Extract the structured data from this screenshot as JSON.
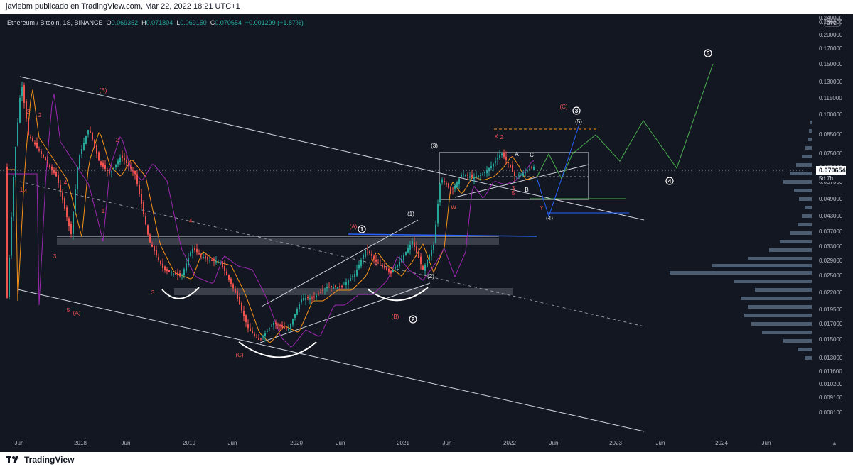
{
  "header": {
    "publisher_text": "javiebm publicado en TradingView.com, Mar 22, 2022 18:21 UTC+1"
  },
  "footer": {
    "brand": "TradingView",
    "logo_icon": "tradingview-logo-icon"
  },
  "legend": {
    "symbol": "Ethereum / Bitcoin, 1S, BINANCE",
    "o_label": "O",
    "o_value": "0.069352",
    "h_label": "H",
    "h_value": "0.071804",
    "l_label": "L",
    "l_value": "0.069150",
    "c_label": "C",
    "c_value": "0.070654",
    "change": "+0.001299 (+1.87%)"
  },
  "colors": {
    "background": "#131722",
    "up": "#26a69a",
    "down": "#ef5350",
    "ema_fast": "#f7931a",
    "ema_slow": "#9c27b0",
    "channel": "#d1d4dc",
    "projection_green": "#4caf50",
    "projection_blue": "#2962ff",
    "label_red": "#ef5350"
  },
  "chart_data": {
    "type": "candlestick",
    "scale": "log",
    "currency": "BTC",
    "y_ticks": [
      "0.240000",
      "0.230000",
      "0.200000",
      "0.170000",
      "0.150000",
      "0.130000",
      "0.115000",
      "0.100000",
      "0.085000",
      "0.075000",
      "0.065000",
      "0.057000",
      "0.049000",
      "0.043000",
      "0.037000",
      "0.033000",
      "0.029000",
      "0.025000",
      "0.022000",
      "0.019500",
      "0.017000",
      "0.015000",
      "0.013000",
      "0.011600",
      "0.010200",
      "0.009100",
      "0.008100"
    ],
    "x_ticks": [
      "Jun",
      "2018",
      "Jun",
      "2019",
      "Jun",
      "2020",
      "Jun",
      "2021",
      "Jun",
      "2022",
      "Jun",
      "2023",
      "Jun",
      "2024",
      "Jun"
    ],
    "last_price": "0.070654",
    "countdown": "5d 7h",
    "series": [
      {
        "name": "ETH/BTC",
        "x": [
          "2017-06",
          "2017-08",
          "2017-10",
          "2017-12",
          "2018-02",
          "2018-04",
          "2018-06",
          "2018-08",
          "2018-10",
          "2018-12",
          "2019-02",
          "2019-04",
          "2019-06",
          "2019-08",
          "2019-10",
          "2019-12",
          "2020-02",
          "2020-04",
          "2020-06",
          "2020-08",
          "2020-10",
          "2020-12",
          "2021-02",
          "2021-04",
          "2021-06",
          "2021-08",
          "2021-10",
          "2021-12",
          "2022-02",
          "2022-03"
        ],
        "close": [
          0.13,
          0.075,
          0.07,
          0.06,
          0.085,
          0.08,
          0.075,
          0.048,
          0.034,
          0.029,
          0.036,
          0.031,
          0.026,
          0.018,
          0.021,
          0.018,
          0.026,
          0.021,
          0.026,
          0.036,
          0.033,
          0.027,
          0.033,
          0.057,
          0.065,
          0.066,
          0.069,
          0.078,
          0.072,
          0.070654
        ]
      }
    ],
    "wave_labels": {
      "white": [
        "1",
        "2",
        "3",
        "4",
        "5"
      ],
      "red": [
        "(A)",
        "(B)",
        "(C)",
        "(A)",
        "(B)",
        "(C)",
        "1",
        "2",
        "3",
        "4",
        "5",
        "3",
        "5",
        "X",
        "2",
        "Y",
        "W"
      ],
      "white_small": [
        "(1)",
        "(2)",
        "(3)",
        "(4)",
        "(5)",
        "A",
        "B",
        "C",
        "3",
        "5"
      ]
    }
  }
}
